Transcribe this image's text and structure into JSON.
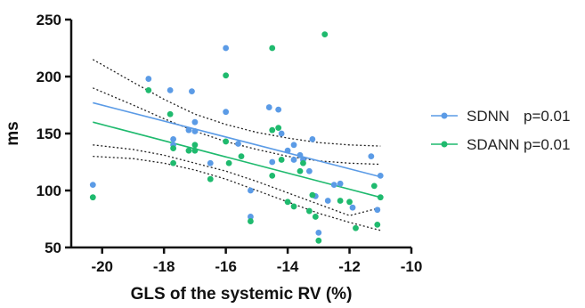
{
  "chart_data": {
    "type": "scatter",
    "xlabel": "GLS of the systemic RV  (%)",
    "ylabel": "ms",
    "xlim": [
      -21,
      -10
    ],
    "ylim": [
      50,
      250
    ],
    "xticks": [
      -20,
      -18,
      -16,
      -14,
      -12,
      -10
    ],
    "yticks": [
      50,
      100,
      150,
      200,
      250
    ],
    "xtick_labels": [
      "-20",
      "-18",
      "-16",
      "-14",
      "-12",
      "-10"
    ],
    "ytick_labels": [
      "50",
      "100",
      "150",
      "200",
      "250"
    ],
    "grid": false,
    "legend_position": "right",
    "series": [
      {
        "name": "SDNN",
        "pvalue": "p=0.01",
        "color": "#5b9be6",
        "regression": {
          "x": [
            -20.3,
            -11
          ],
          "y": [
            177,
            112
          ]
        },
        "ci_upper": [
          [
            -20.3,
            215
          ],
          [
            -19,
            195
          ],
          [
            -18,
            180
          ],
          [
            -17,
            167
          ],
          [
            -16,
            158
          ],
          [
            -15,
            151
          ],
          [
            -14,
            146
          ],
          [
            -13,
            142
          ],
          [
            -12,
            140
          ],
          [
            -11,
            139
          ]
        ],
        "ci_lower": [
          [
            -20.3,
            140
          ],
          [
            -19,
            136
          ],
          [
            -18,
            131
          ],
          [
            -17,
            124
          ],
          [
            -16,
            117
          ],
          [
            -15,
            108
          ],
          [
            -14,
            98
          ],
          [
            -13,
            88
          ],
          [
            -12,
            78
          ],
          [
            -11,
            85
          ]
        ],
        "points": [
          [
            -20.3,
            105
          ],
          [
            -18.5,
            198
          ],
          [
            -17.8,
            188
          ],
          [
            -17.1,
            187
          ],
          [
            -17.0,
            160
          ],
          [
            -17.7,
            145
          ],
          [
            -17.7,
            140
          ],
          [
            -17.2,
            153
          ],
          [
            -17.0,
            152
          ],
          [
            -16.5,
            124
          ],
          [
            -16.0,
            225
          ],
          [
            -16.0,
            169
          ],
          [
            -15.6,
            141
          ],
          [
            -15.2,
            100
          ],
          [
            -15.2,
            77
          ],
          [
            -14.6,
            173
          ],
          [
            -14.5,
            125
          ],
          [
            -14.3,
            171
          ],
          [
            -14.2,
            150
          ],
          [
            -14.0,
            135
          ],
          [
            -13.8,
            140
          ],
          [
            -13.8,
            127
          ],
          [
            -13.6,
            131
          ],
          [
            -13.5,
            127
          ],
          [
            -13.3,
            117
          ],
          [
            -13.2,
            145
          ],
          [
            -13.1,
            95
          ],
          [
            -13.0,
            63
          ],
          [
            -12.5,
            105
          ],
          [
            -12.3,
            106
          ],
          [
            -11.9,
            85
          ],
          [
            -11.3,
            130
          ],
          [
            -11.1,
            83
          ],
          [
            -11.0,
            113
          ],
          [
            -12.7,
            91
          ]
        ]
      },
      {
        "name": "SDANN",
        "pvalue": "p=0.01",
        "color": "#1fba6e",
        "regression": {
          "x": [
            -20.3,
            -11
          ],
          "y": [
            160,
            94
          ]
        },
        "ci_upper": [
          [
            -20.3,
            190
          ],
          [
            -19,
            175
          ],
          [
            -18,
            163
          ],
          [
            -17,
            152
          ],
          [
            -16,
            143
          ],
          [
            -15,
            136
          ],
          [
            -14,
            130
          ],
          [
            -13,
            126
          ],
          [
            -12,
            124
          ],
          [
            -11,
            123
          ]
        ],
        "ci_lower": [
          [
            -20.3,
            130
          ],
          [
            -19,
            128
          ],
          [
            -18,
            124
          ],
          [
            -17,
            118
          ],
          [
            -16,
            110
          ],
          [
            -15,
            100
          ],
          [
            -14,
            90
          ],
          [
            -13,
            80
          ],
          [
            -12,
            72
          ],
          [
            -11,
            65
          ]
        ],
        "points": [
          [
            -20.3,
            94
          ],
          [
            -18.5,
            188
          ],
          [
            -17.8,
            167
          ],
          [
            -17.7,
            137
          ],
          [
            -17.7,
            124
          ],
          [
            -17.2,
            135
          ],
          [
            -17.0,
            140
          ],
          [
            -17.0,
            135
          ],
          [
            -16.5,
            110
          ],
          [
            -16.0,
            201
          ],
          [
            -16.0,
            143
          ],
          [
            -15.9,
            124
          ],
          [
            -15.5,
            130
          ],
          [
            -15.2,
            73
          ],
          [
            -14.5,
            225
          ],
          [
            -14.5,
            153
          ],
          [
            -14.5,
            113
          ],
          [
            -14.3,
            155
          ],
          [
            -14.2,
            127
          ],
          [
            -14.0,
            90
          ],
          [
            -13.8,
            86
          ],
          [
            -13.6,
            117
          ],
          [
            -13.5,
            124
          ],
          [
            -13.3,
            82
          ],
          [
            -13.2,
            96
          ],
          [
            -13.1,
            77
          ],
          [
            -13.0,
            56
          ],
          [
            -12.8,
            237
          ],
          [
            -12.3,
            91
          ],
          [
            -12.0,
            90
          ],
          [
            -11.8,
            67
          ],
          [
            -11.2,
            104
          ],
          [
            -11.1,
            70
          ],
          [
            -11.0,
            94
          ]
        ]
      }
    ]
  }
}
